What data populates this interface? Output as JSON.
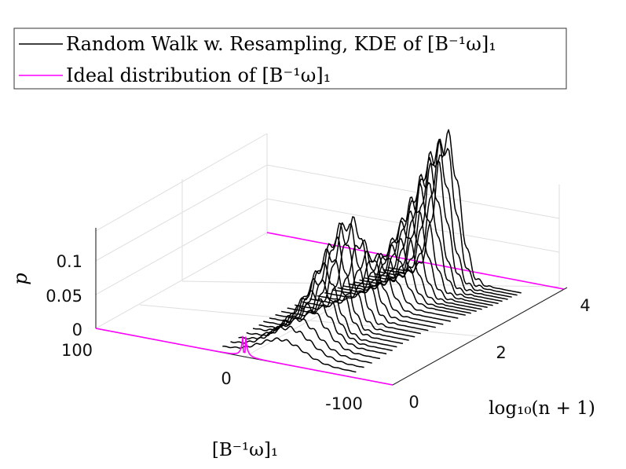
{
  "chart_data": {
    "type": "line",
    "projection": "3d",
    "legend": {
      "placement": "top",
      "entries": [
        {
          "label": "Random Walk w. Resampling, KDE of [B⁻¹ω]₁",
          "color": "#000000"
        },
        {
          "label": "Ideal distribution of [B⁻¹ω]₁",
          "color": "#ff00ff"
        }
      ]
    },
    "axes": {
      "x": {
        "label": "[B⁻¹ω]₁",
        "range": [
          -100,
          100
        ],
        "ticks": [
          "100",
          "0",
          "-100"
        ]
      },
      "y": {
        "label": "log₁₀(n + 1)",
        "range": [
          0,
          4.3
        ],
        "ticks": [
          "0",
          "2",
          "4"
        ]
      },
      "z": {
        "label": "p",
        "range": [
          0,
          0.14
        ],
        "ticks": [
          "0",
          "0.05",
          "0.1"
        ]
      }
    },
    "grid": true,
    "series": [
      {
        "name": "Random Walk w. Resampling, KDE of [B⁻¹ω]₁",
        "color": "#000000",
        "kind": "kde-curves",
        "curves": [
          {
            "log_n": 0.2,
            "peak_x": -20,
            "width": 14,
            "peak_p": 0.018
          },
          {
            "log_n": 0.4,
            "peak_x": -20,
            "width": 14,
            "peak_p": 0.025
          },
          {
            "log_n": 0.6,
            "peak_x": -20,
            "width": 13,
            "peak_p": 0.03
          },
          {
            "log_n": 0.8,
            "peak_x": -20,
            "width": 12,
            "peak_p": 0.038
          },
          {
            "log_n": 1.0,
            "peak_x": -19,
            "width": 11,
            "peak_p": 0.045
          },
          {
            "log_n": 1.15,
            "peak_x": -19,
            "width": 10,
            "peak_p": 0.055
          },
          {
            "log_n": 1.3,
            "peak_x": -18,
            "width": 9,
            "peak_p": 0.065
          },
          {
            "log_n": 1.45,
            "peak_x": -18,
            "width": 9,
            "peak_p": 0.075
          },
          {
            "log_n": 1.6,
            "peak_x": -18,
            "width": 8,
            "peak_p": 0.085
          },
          {
            "log_n": 1.75,
            "peak_x": -18,
            "width": 8,
            "peak_p": 0.092
          },
          {
            "log_n": 1.9,
            "peak_x": -18,
            "width": 8,
            "peak_p": 0.095
          },
          {
            "log_n": 2.05,
            "peak_x": -19,
            "width": 8,
            "peak_p": 0.092
          },
          {
            "log_n": 2.2,
            "peak_x": -20,
            "width": 8,
            "peak_p": 0.07
          },
          {
            "log_n": 2.35,
            "peak_x": -21,
            "width": 8,
            "peak_p": 0.055
          },
          {
            "log_n": 2.5,
            "peak_x": -22,
            "width": 8,
            "peak_p": 0.05
          },
          {
            "log_n": 2.65,
            "peak_x": -23,
            "width": 8,
            "peak_p": 0.048
          },
          {
            "log_n": 2.8,
            "peak_x": -24,
            "width": 8,
            "peak_p": 0.052
          },
          {
            "log_n": 2.9,
            "peak_x": -25,
            "width": 8,
            "peak_p": 0.06
          },
          {
            "log_n": 3.0,
            "peak_x": -26,
            "width": 8,
            "peak_p": 0.07
          },
          {
            "log_n": 3.1,
            "peak_x": -27,
            "width": 8,
            "peak_p": 0.08
          },
          {
            "log_n": 3.2,
            "peak_x": -28,
            "width": 8,
            "peak_p": 0.09
          },
          {
            "log_n": 3.3,
            "peak_x": -29,
            "width": 8,
            "peak_p": 0.1
          },
          {
            "log_n": 3.4,
            "peak_x": -30,
            "width": 8,
            "peak_p": 0.11
          },
          {
            "log_n": 3.5,
            "peak_x": -30,
            "width": 8,
            "peak_p": 0.12
          },
          {
            "log_n": 3.6,
            "peak_x": -31,
            "width": 8,
            "peak_p": 0.128
          },
          {
            "log_n": 3.7,
            "peak_x": -31,
            "width": 8,
            "peak_p": 0.133
          },
          {
            "log_n": 3.8,
            "peak_x": -32,
            "width": 8,
            "peak_p": 0.136
          },
          {
            "log_n": 3.9,
            "peak_x": -32,
            "width": 8,
            "peak_p": 0.138
          }
        ]
      },
      {
        "name": "Ideal distribution of [B⁻¹ω]₁",
        "color": "#ff00ff",
        "kind": "flat-lines",
        "near_line": {
          "log_n": 0,
          "peak_x": 0,
          "peak_p": 0.032,
          "width": 1.2
        },
        "far_line": {
          "log_n": 4.3,
          "p": 0
        }
      }
    ]
  }
}
